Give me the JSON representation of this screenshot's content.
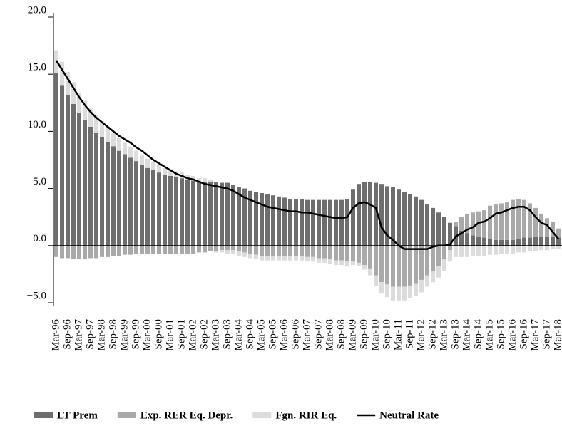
{
  "chart_data": {
    "type": "bar",
    "stacked": true,
    "categories": [
      "Mar-96",
      null,
      "Sep-96",
      null,
      "Mar-97",
      null,
      "Sep-97",
      null,
      "Mar-98",
      null,
      "Sep-98",
      null,
      "Mar-99",
      null,
      "Sep-99",
      null,
      "Mar-00",
      null,
      "Sep-00",
      null,
      "Mar-01",
      null,
      "Sep-01",
      null,
      "Mar-02",
      null,
      "Sep-02",
      null,
      "Mar-03",
      null,
      "Sep-03",
      null,
      "Mar-04",
      null,
      "Sep-04",
      null,
      "Mar-05",
      null,
      "Sep-05",
      null,
      "Mar-06",
      null,
      "Sep-06",
      null,
      "Mar-07",
      null,
      "Sep-07",
      null,
      "Mar-08",
      null,
      "Sep-08",
      null,
      "Mar-09",
      null,
      "Sep-09",
      null,
      "Mar-10",
      null,
      "Sep-10",
      null,
      "Mar-11",
      null,
      "Sep-11",
      null,
      "Mar-12",
      null,
      "Sep-12",
      null,
      "Mar-13",
      null,
      "Sep-13",
      null,
      "Mar-14",
      null,
      "Sep-14",
      null,
      "Mar-15",
      null,
      "Sep-15",
      null,
      "Mar-16",
      null,
      "Sep-16",
      null,
      "Mar-17",
      null,
      "Sep-17",
      null,
      "Mar-18"
    ],
    "series": [
      {
        "name": "LT Prem",
        "type": "bar",
        "color": "#6e6e6e",
        "values": [
          15.1,
          14.0,
          13.2,
          12.4,
          11.6,
          11.0,
          10.4,
          9.9,
          9.5,
          9.1,
          8.7,
          8.3,
          8.0,
          7.7,
          7.4,
          7.1,
          6.8,
          6.6,
          6.4,
          6.2,
          6.1,
          6.0,
          5.9,
          5.8,
          5.7,
          5.6,
          5.6,
          5.6,
          5.6,
          5.5,
          5.5,
          5.3,
          5.1,
          5.0,
          4.8,
          4.7,
          4.6,
          4.5,
          4.4,
          4.3,
          4.2,
          4.1,
          4.1,
          4.1,
          4.0,
          4.0,
          4.0,
          4.0,
          4.0,
          4.0,
          4.0,
          4.1,
          4.9,
          5.4,
          5.6,
          5.6,
          5.5,
          5.4,
          5.2,
          5.1,
          4.9,
          4.7,
          4.5,
          4.3,
          4.0,
          3.6,
          3.3,
          2.9,
          2.5,
          2.0,
          1.7,
          1.3,
          1.1,
          0.9,
          0.8,
          0.7,
          0.6,
          0.5,
          0.5,
          0.5,
          0.5,
          0.6,
          0.7,
          0.7,
          0.8,
          0.8,
          0.8,
          0.8,
          0.7
        ]
      },
      {
        "name": "Exp. RER Eq. Depr.",
        "type": "bar",
        "color": "#a9a9a9",
        "values": [
          -1.0,
          -1.1,
          -1.1,
          -1.2,
          -1.2,
          -1.2,
          -1.1,
          -1.1,
          -1.0,
          -1.0,
          -0.9,
          -0.9,
          -0.8,
          -0.8,
          -0.7,
          -0.7,
          -0.7,
          -0.7,
          -0.7,
          -0.7,
          -0.7,
          -0.7,
          -0.7,
          -0.7,
          -0.7,
          -0.6,
          -0.6,
          -0.5,
          -0.5,
          -0.4,
          -0.4,
          -0.4,
          -0.5,
          -0.6,
          -0.7,
          -0.8,
          -0.9,
          -0.9,
          -0.9,
          -0.9,
          -0.9,
          -0.9,
          -0.9,
          -0.9,
          -1.0,
          -1.0,
          -1.1,
          -1.1,
          -1.2,
          -1.3,
          -1.3,
          -1.4,
          -1.4,
          -1.5,
          -1.7,
          -2.0,
          -2.6,
          -3.2,
          -3.4,
          -3.6,
          -3.6,
          -3.6,
          -3.5,
          -3.3,
          -3.0,
          -2.6,
          -2.2,
          -1.8,
          -1.2,
          -0.4,
          0.4,
          1.2,
          1.7,
          2.0,
          2.2,
          2.4,
          2.9,
          3.1,
          3.2,
          3.3,
          3.5,
          3.5,
          3.3,
          3.0,
          2.5,
          2.0,
          1.6,
          1.3,
          0.8
        ]
      },
      {
        "name": "Fgn. RIR Eq.",
        "type": "bar",
        "color": "#dcdcdc",
        "values": [
          2.0,
          2.1,
          2.0,
          1.9,
          1.8,
          1.7,
          1.6,
          1.5,
          1.4,
          1.3,
          1.2,
          1.1,
          1.0,
          0.9,
          0.9,
          0.8,
          0.8,
          0.7,
          0.7,
          0.6,
          0.6,
          0.5,
          0.5,
          0.4,
          0.4,
          0.3,
          0.3,
          0.2,
          -0.1,
          -0.2,
          -0.3,
          -0.3,
          -0.4,
          -0.4,
          -0.4,
          -0.4,
          -0.4,
          -0.4,
          -0.4,
          -0.4,
          -0.4,
          -0.4,
          -0.4,
          -0.4,
          -0.4,
          -0.4,
          -0.4,
          -0.4,
          -0.4,
          -0.4,
          -0.4,
          -0.4,
          -0.3,
          -0.3,
          -0.4,
          -0.6,
          -0.9,
          -1.0,
          -1.1,
          -1.2,
          -1.2,
          -1.2,
          -1.1,
          -1.1,
          -1.1,
          -1.0,
          -1.0,
          -1.0,
          -1.0,
          -1.0,
          -1.0,
          -1.0,
          -1.0,
          -0.9,
          -0.9,
          -0.9,
          -0.8,
          -0.8,
          -0.7,
          -0.7,
          -0.7,
          -0.6,
          -0.6,
          -0.5,
          -0.5,
          -0.4,
          -0.4,
          -0.3,
          -0.3
        ]
      },
      {
        "name": "Neutral Rate",
        "type": "line",
        "color": "#000000",
        "values": [
          16.2,
          15.4,
          14.6,
          13.8,
          13.0,
          12.3,
          11.7,
          11.2,
          10.8,
          10.4,
          10.0,
          9.6,
          9.3,
          9.0,
          8.6,
          8.3,
          7.9,
          7.5,
          7.2,
          6.9,
          6.6,
          6.3,
          6.1,
          5.9,
          5.8,
          5.6,
          5.4,
          5.3,
          5.2,
          5.1,
          5.0,
          4.8,
          4.5,
          4.2,
          4.0,
          3.8,
          3.6,
          3.4,
          3.3,
          3.2,
          3.1,
          3.0,
          3.0,
          2.9,
          2.9,
          2.8,
          2.7,
          2.6,
          2.5,
          2.4,
          2.4,
          2.5,
          3.3,
          3.7,
          3.8,
          3.6,
          3.3,
          1.6,
          0.9,
          0.5,
          0.0,
          -0.3,
          -0.3,
          -0.3,
          -0.3,
          -0.3,
          -0.1,
          0.0,
          0.0,
          0.1,
          0.8,
          1.1,
          1.4,
          1.6,
          2.0,
          2.1,
          2.4,
          2.8,
          2.9,
          3.1,
          3.3,
          3.4,
          3.4,
          3.1,
          2.5,
          2.0,
          1.8,
          1.2,
          0.6
        ]
      }
    ],
    "ylim": [
      -5,
      20
    ],
    "yticks": [
      {
        "value": -5,
        "label": "−5.0"
      },
      {
        "value": 0,
        "label": "0.0"
      },
      {
        "value": 5,
        "label": "5.0"
      },
      {
        "value": 10,
        "label": "10.0"
      },
      {
        "value": 15,
        "label": "15.0"
      },
      {
        "value": 20,
        "label": "20.0"
      }
    ]
  }
}
